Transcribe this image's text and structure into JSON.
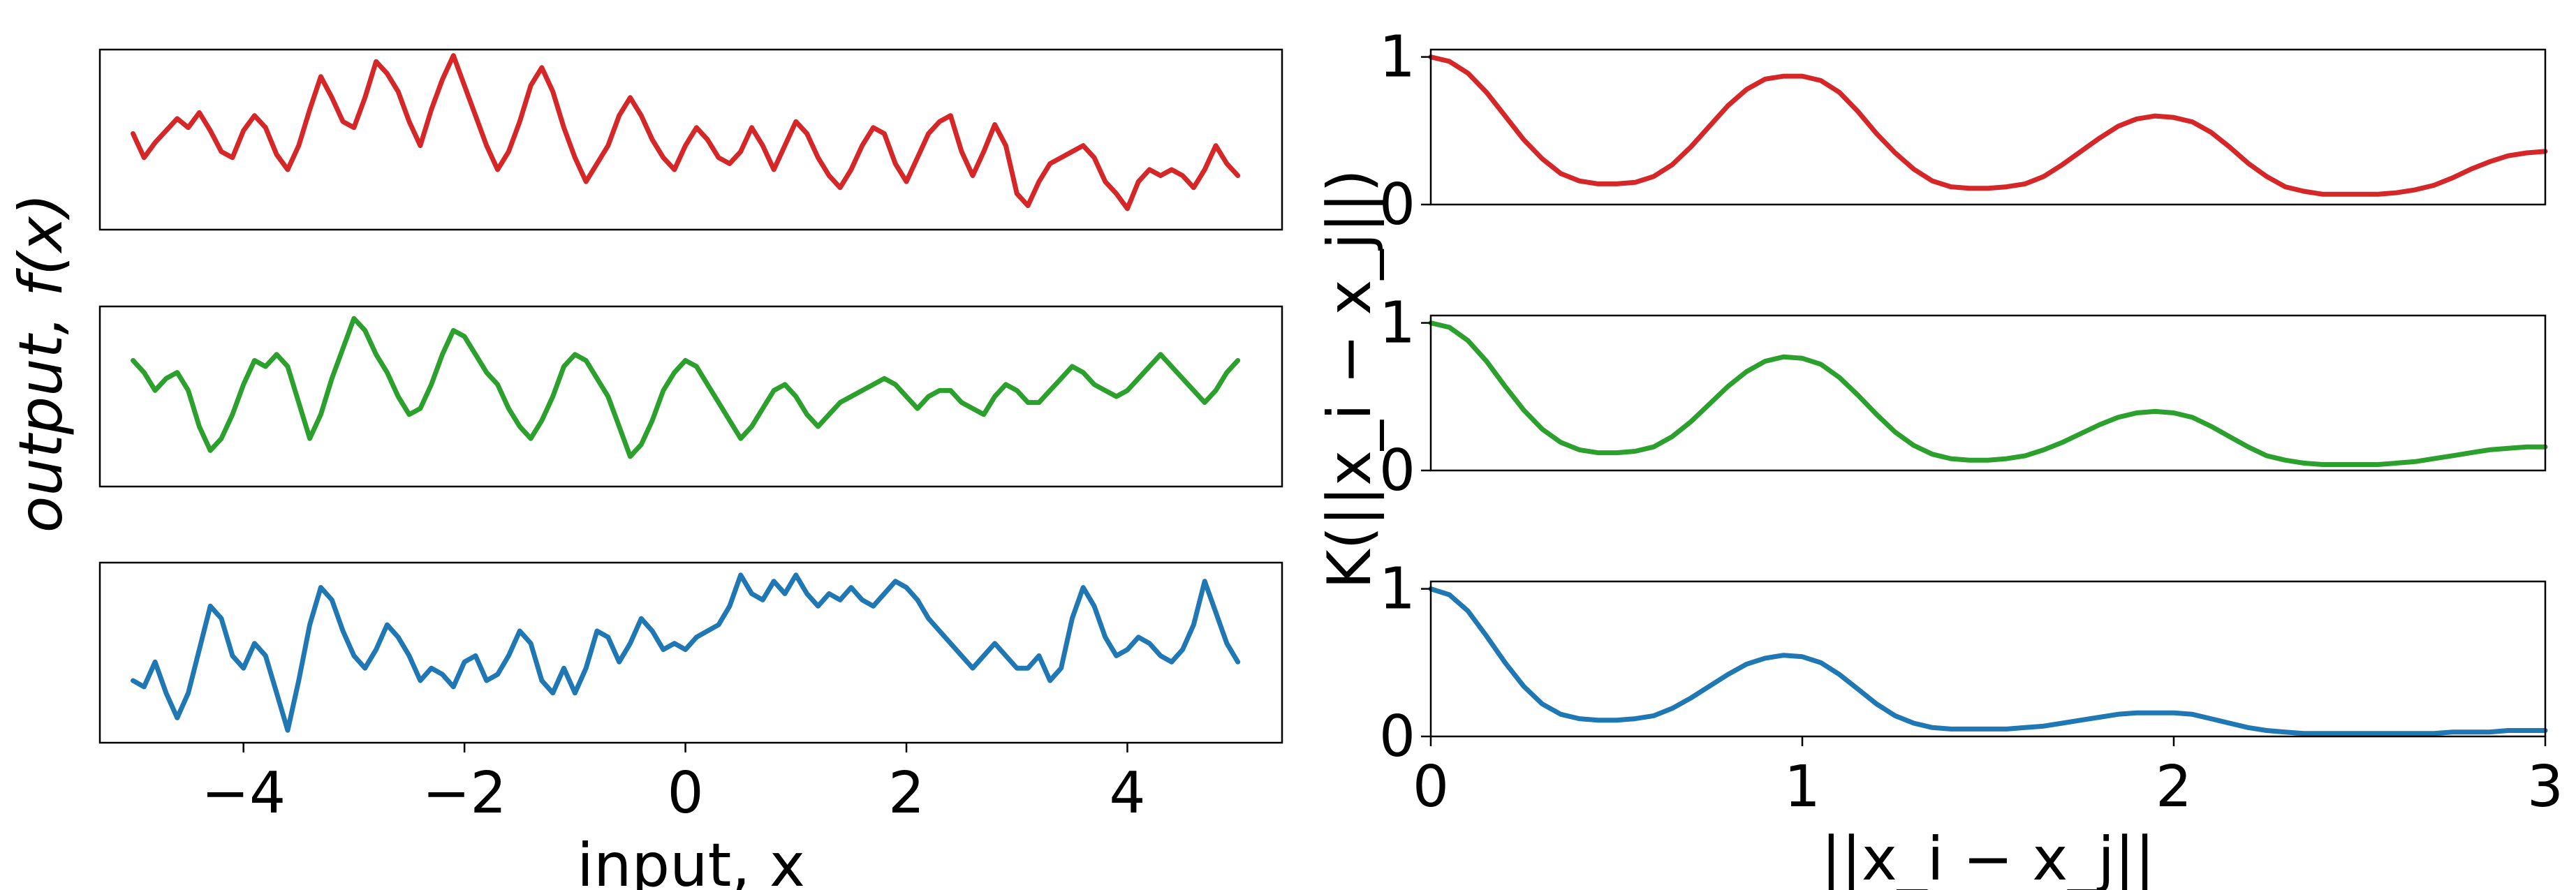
{
  "chart_data": [
    {
      "type": "line",
      "panel": "left-top",
      "color": "#d62728",
      "xlim": [
        -5.3,
        5.4
      ],
      "ylim": [
        -1.6,
        1.4
      ],
      "x_ticks_visible": false,
      "y_ticks_visible": false,
      "series": [
        {
          "x": [
            -5.0,
            -4.9,
            -4.8,
            -4.7,
            -4.6,
            -4.5,
            -4.4,
            -4.3,
            -4.2,
            -4.1,
            -4.0,
            -3.9,
            -3.8,
            -3.7,
            -3.6,
            -3.5,
            -3.4,
            -3.3,
            -3.2,
            -3.1,
            -3.0,
            -2.9,
            -2.8,
            -2.7,
            -2.6,
            -2.5,
            -2.4,
            -2.3,
            -2.2,
            -2.1,
            -2.0,
            -1.9,
            -1.8,
            -1.7,
            -1.6,
            -1.5,
            -1.4,
            -1.3,
            -1.2,
            -1.1,
            -1.0,
            -0.9,
            -0.8,
            -0.7,
            -0.6,
            -0.5,
            -0.4,
            -0.3,
            -0.2,
            -0.1,
            0.0,
            0.1,
            0.2,
            0.3,
            0.4,
            0.5,
            0.6,
            0.7,
            0.8,
            0.9,
            1.0,
            1.1,
            1.2,
            1.3,
            1.4,
            1.5,
            1.6,
            1.7,
            1.8,
            1.9,
            2.0,
            2.1,
            2.2,
            2.3,
            2.4,
            2.5,
            2.6,
            2.7,
            2.8,
            2.9,
            3.0,
            3.1,
            3.2,
            3.3,
            3.4,
            3.5,
            3.6,
            3.7,
            3.8,
            3.9,
            4.0,
            4.1,
            4.2,
            4.3,
            4.4,
            4.5,
            4.6,
            4.7,
            4.8,
            4.9,
            5.0
          ],
          "y": [
            0.0,
            -0.4,
            -0.15,
            0.05,
            0.25,
            0.1,
            0.35,
            0.05,
            -0.3,
            -0.4,
            0.05,
            0.3,
            0.1,
            -0.35,
            -0.6,
            -0.2,
            0.4,
            0.95,
            0.6,
            0.2,
            0.1,
            0.6,
            1.2,
            1.0,
            0.7,
            0.2,
            -0.2,
            0.4,
            0.9,
            1.3,
            0.8,
            0.3,
            -0.2,
            -0.6,
            -0.3,
            0.2,
            0.8,
            1.1,
            0.7,
            0.1,
            -0.4,
            -0.8,
            -0.5,
            -0.2,
            0.3,
            0.6,
            0.3,
            -0.1,
            -0.4,
            -0.6,
            -0.2,
            0.1,
            -0.1,
            -0.4,
            -0.5,
            -0.3,
            0.1,
            -0.2,
            -0.6,
            -0.2,
            0.2,
            0.0,
            -0.4,
            -0.7,
            -0.9,
            -0.6,
            -0.2,
            0.1,
            0.0,
            -0.5,
            -0.8,
            -0.4,
            0.0,
            0.2,
            0.3,
            -0.3,
            -0.7,
            -0.3,
            0.15,
            -0.2,
            -1.0,
            -1.2,
            -0.8,
            -0.5,
            -0.4,
            -0.3,
            -0.2,
            -0.4,
            -0.8,
            -1.0,
            -1.25,
            -0.8,
            -0.6,
            -0.7,
            -0.6,
            -0.7,
            -0.9,
            -0.6,
            -0.2,
            -0.5,
            -0.7
          ]
        }
      ]
    },
    {
      "type": "line",
      "panel": "left-middle",
      "color": "#2ca02c",
      "xlim": [
        -5.3,
        5.4
      ],
      "ylim": [
        -1.6,
        1.4
      ],
      "x_ticks_visible": false,
      "y_ticks_visible": false,
      "series": [
        {
          "x": [
            -5.0,
            -4.9,
            -4.8,
            -4.7,
            -4.6,
            -4.5,
            -4.4,
            -4.3,
            -4.2,
            -4.1,
            -4.0,
            -3.9,
            -3.8,
            -3.7,
            -3.6,
            -3.5,
            -3.4,
            -3.3,
            -3.2,
            -3.1,
            -3.0,
            -2.9,
            -2.8,
            -2.7,
            -2.6,
            -2.5,
            -2.4,
            -2.3,
            -2.2,
            -2.1,
            -2.0,
            -1.9,
            -1.8,
            -1.7,
            -1.6,
            -1.5,
            -1.4,
            -1.3,
            -1.2,
            -1.1,
            -1.0,
            -0.9,
            -0.8,
            -0.7,
            -0.6,
            -0.5,
            -0.4,
            -0.3,
            -0.2,
            -0.1,
            0.0,
            0.1,
            0.2,
            0.3,
            0.4,
            0.5,
            0.6,
            0.7,
            0.8,
            0.9,
            1.0,
            1.1,
            1.2,
            1.3,
            1.4,
            1.5,
            1.6,
            1.7,
            1.8,
            1.9,
            2.0,
            2.1,
            2.2,
            2.3,
            2.4,
            2.5,
            2.6,
            2.7,
            2.8,
            2.9,
            3.0,
            3.1,
            3.2,
            3.3,
            3.4,
            3.5,
            3.6,
            3.7,
            3.8,
            3.9,
            4.0,
            4.1,
            4.2,
            4.3,
            4.4,
            4.5,
            4.6,
            4.7,
            4.8,
            4.9,
            5.0
          ],
          "y": [
            0.5,
            0.3,
            0.0,
            0.2,
            0.3,
            0.0,
            -0.6,
            -1.0,
            -0.8,
            -0.4,
            0.1,
            0.5,
            0.4,
            0.6,
            0.4,
            -0.2,
            -0.8,
            -0.4,
            0.2,
            0.7,
            1.2,
            1.0,
            0.6,
            0.3,
            -0.1,
            -0.4,
            -0.3,
            0.1,
            0.6,
            1.0,
            0.9,
            0.6,
            0.3,
            0.1,
            -0.3,
            -0.6,
            -0.8,
            -0.5,
            -0.1,
            0.4,
            0.6,
            0.5,
            0.2,
            -0.1,
            -0.6,
            -1.1,
            -0.9,
            -0.5,
            0.0,
            0.3,
            0.5,
            0.4,
            0.1,
            -0.2,
            -0.5,
            -0.8,
            -0.6,
            -0.3,
            0.0,
            0.1,
            -0.1,
            -0.4,
            -0.6,
            -0.4,
            -0.2,
            -0.1,
            0.0,
            0.1,
            0.2,
            0.1,
            -0.1,
            -0.3,
            -0.1,
            0.0,
            0.0,
            -0.2,
            -0.3,
            -0.4,
            -0.1,
            0.1,
            0.0,
            -0.2,
            -0.2,
            0.0,
            0.2,
            0.4,
            0.3,
            0.1,
            0.0,
            -0.1,
            0.0,
            0.2,
            0.4,
            0.6,
            0.4,
            0.2,
            0.0,
            -0.2,
            0.0,
            0.3,
            0.5
          ]
        }
      ]
    },
    {
      "type": "line",
      "panel": "left-bottom",
      "color": "#1f77b4",
      "xlim": [
        -5.3,
        5.4
      ],
      "ylim": [
        -1.4,
        1.5
      ],
      "xlabel": "input, x",
      "x_ticks": [
        -4,
        -2,
        0,
        2,
        4
      ],
      "x_tick_labels": [
        "−4",
        "−2",
        "0",
        "2",
        "4"
      ],
      "y_ticks_visible": false,
      "series": [
        {
          "x": [
            -5.0,
            -4.9,
            -4.8,
            -4.7,
            -4.6,
            -4.5,
            -4.4,
            -4.3,
            -4.2,
            -4.1,
            -4.0,
            -3.9,
            -3.8,
            -3.7,
            -3.6,
            -3.5,
            -3.4,
            -3.3,
            -3.2,
            -3.1,
            -3.0,
            -2.9,
            -2.8,
            -2.7,
            -2.6,
            -2.5,
            -2.4,
            -2.3,
            -2.2,
            -2.1,
            -2.0,
            -1.9,
            -1.8,
            -1.7,
            -1.6,
            -1.5,
            -1.4,
            -1.3,
            -1.2,
            -1.1,
            -1.0,
            -0.9,
            -0.8,
            -0.7,
            -0.6,
            -0.5,
            -0.4,
            -0.3,
            -0.2,
            -0.1,
            0.0,
            0.1,
            0.2,
            0.3,
            0.4,
            0.5,
            0.6,
            0.7,
            0.8,
            0.9,
            1.0,
            1.1,
            1.2,
            1.3,
            1.4,
            1.5,
            1.6,
            1.7,
            1.8,
            1.9,
            2.0,
            2.1,
            2.2,
            2.3,
            2.4,
            2.5,
            2.6,
            2.7,
            2.8,
            2.9,
            3.0,
            3.1,
            3.2,
            3.3,
            3.4,
            3.5,
            3.6,
            3.7,
            3.8,
            3.9,
            4.0,
            4.1,
            4.2,
            4.3,
            4.4,
            4.5,
            4.6,
            4.7,
            4.8,
            4.9,
            5.0
          ],
          "y": [
            -0.4,
            -0.5,
            -0.1,
            -0.6,
            -1.0,
            -0.6,
            0.1,
            0.8,
            0.6,
            0.0,
            -0.2,
            0.2,
            0.0,
            -0.6,
            -1.2,
            -0.4,
            0.5,
            1.1,
            0.9,
            0.4,
            0.0,
            -0.2,
            0.1,
            0.5,
            0.3,
            0.0,
            -0.4,
            -0.2,
            -0.3,
            -0.5,
            -0.1,
            0.0,
            -0.4,
            -0.3,
            0.0,
            0.4,
            0.2,
            -0.4,
            -0.6,
            -0.2,
            -0.6,
            -0.2,
            0.4,
            0.3,
            -0.1,
            0.2,
            0.6,
            0.4,
            0.1,
            0.2,
            0.1,
            0.3,
            0.4,
            0.5,
            0.8,
            1.3,
            1.0,
            0.9,
            1.2,
            1.0,
            1.3,
            1.0,
            0.8,
            1.0,
            0.9,
            1.1,
            0.9,
            0.8,
            1.0,
            1.2,
            1.1,
            0.9,
            0.6,
            0.4,
            0.2,
            0.0,
            -0.2,
            0.0,
            0.2,
            0.0,
            -0.2,
            -0.2,
            0.0,
            -0.4,
            -0.2,
            0.6,
            1.1,
            0.8,
            0.3,
            0.0,
            0.1,
            0.3,
            0.2,
            0.0,
            -0.1,
            0.1,
            0.5,
            1.2,
            0.7,
            0.2,
            -0.1
          ]
        }
      ]
    },
    {
      "type": "line",
      "panel": "right-top",
      "color": "#d62728",
      "xlim": [
        0,
        3
      ],
      "ylim": [
        0,
        1.05
      ],
      "y_ticks": [
        0,
        1
      ],
      "y_tick_labels": [
        "0",
        "1"
      ],
      "x_ticks_visible": false,
      "series": [
        {
          "x": [
            0.0,
            0.05,
            0.1,
            0.15,
            0.2,
            0.25,
            0.3,
            0.35,
            0.4,
            0.45,
            0.5,
            0.55,
            0.6,
            0.65,
            0.7,
            0.75,
            0.8,
            0.85,
            0.9,
            0.95,
            1.0,
            1.05,
            1.1,
            1.15,
            1.2,
            1.25,
            1.3,
            1.35,
            1.4,
            1.45,
            1.5,
            1.55,
            1.6,
            1.65,
            1.7,
            1.75,
            1.8,
            1.85,
            1.9,
            1.95,
            2.0,
            2.05,
            2.1,
            2.15,
            2.2,
            2.25,
            2.3,
            2.35,
            2.4,
            2.45,
            2.5,
            2.55,
            2.6,
            2.65,
            2.7,
            2.75,
            2.8,
            2.85,
            2.9,
            2.95,
            3.0
          ],
          "y": [
            1.0,
            0.97,
            0.89,
            0.76,
            0.6,
            0.44,
            0.31,
            0.21,
            0.16,
            0.14,
            0.14,
            0.15,
            0.19,
            0.27,
            0.39,
            0.53,
            0.67,
            0.78,
            0.85,
            0.87,
            0.87,
            0.84,
            0.76,
            0.63,
            0.48,
            0.35,
            0.24,
            0.16,
            0.12,
            0.11,
            0.11,
            0.12,
            0.14,
            0.19,
            0.27,
            0.36,
            0.45,
            0.53,
            0.58,
            0.6,
            0.59,
            0.56,
            0.49,
            0.39,
            0.28,
            0.19,
            0.12,
            0.09,
            0.07,
            0.07,
            0.07,
            0.07,
            0.08,
            0.1,
            0.13,
            0.18,
            0.24,
            0.29,
            0.33,
            0.35,
            0.36
          ]
        }
      ]
    },
    {
      "type": "line",
      "panel": "right-middle",
      "color": "#2ca02c",
      "xlim": [
        0,
        3
      ],
      "ylim": [
        0,
        1.05
      ],
      "y_ticks": [
        0,
        1
      ],
      "y_tick_labels": [
        "0",
        "1"
      ],
      "ylabel": "K(||x_i − x_j||)",
      "x_ticks_visible": false,
      "series": [
        {
          "x": [
            0.0,
            0.05,
            0.1,
            0.15,
            0.2,
            0.25,
            0.3,
            0.35,
            0.4,
            0.45,
            0.5,
            0.55,
            0.6,
            0.65,
            0.7,
            0.75,
            0.8,
            0.85,
            0.9,
            0.95,
            1.0,
            1.05,
            1.1,
            1.15,
            1.2,
            1.25,
            1.3,
            1.35,
            1.4,
            1.45,
            1.5,
            1.55,
            1.6,
            1.65,
            1.7,
            1.75,
            1.8,
            1.85,
            1.9,
            1.95,
            2.0,
            2.05,
            2.1,
            2.15,
            2.2,
            2.25,
            2.3,
            2.35,
            2.4,
            2.45,
            2.5,
            2.55,
            2.6,
            2.65,
            2.7,
            2.75,
            2.8,
            2.85,
            2.9,
            2.95,
            3.0
          ],
          "y": [
            1.0,
            0.97,
            0.88,
            0.74,
            0.57,
            0.41,
            0.28,
            0.19,
            0.14,
            0.12,
            0.12,
            0.13,
            0.16,
            0.23,
            0.33,
            0.45,
            0.57,
            0.67,
            0.74,
            0.77,
            0.76,
            0.72,
            0.63,
            0.51,
            0.38,
            0.26,
            0.17,
            0.11,
            0.08,
            0.07,
            0.07,
            0.08,
            0.1,
            0.14,
            0.19,
            0.25,
            0.31,
            0.36,
            0.39,
            0.4,
            0.39,
            0.36,
            0.3,
            0.23,
            0.16,
            0.1,
            0.07,
            0.05,
            0.04,
            0.04,
            0.04,
            0.04,
            0.05,
            0.06,
            0.08,
            0.1,
            0.12,
            0.14,
            0.15,
            0.16,
            0.16
          ]
        }
      ]
    },
    {
      "type": "line",
      "panel": "right-bottom",
      "color": "#1f77b4",
      "xlim": [
        0,
        3
      ],
      "ylim": [
        0,
        1.05
      ],
      "y_ticks": [
        0,
        1
      ],
      "y_tick_labels": [
        "0",
        "1"
      ],
      "x_ticks": [
        0,
        1,
        2,
        3
      ],
      "x_tick_labels": [
        "0",
        "1",
        "2",
        "3"
      ],
      "xlabel": "||x_i − x_j||",
      "series": [
        {
          "x": [
            0.0,
            0.05,
            0.1,
            0.15,
            0.2,
            0.25,
            0.3,
            0.35,
            0.4,
            0.45,
            0.5,
            0.55,
            0.6,
            0.65,
            0.7,
            0.75,
            0.8,
            0.85,
            0.9,
            0.95,
            1.0,
            1.05,
            1.1,
            1.15,
            1.2,
            1.25,
            1.3,
            1.35,
            1.4,
            1.45,
            1.5,
            1.55,
            1.6,
            1.65,
            1.7,
            1.75,
            1.8,
            1.85,
            1.9,
            1.95,
            2.0,
            2.05,
            2.1,
            2.15,
            2.2,
            2.25,
            2.3,
            2.35,
            2.4,
            2.45,
            2.5,
            2.55,
            2.6,
            2.65,
            2.7,
            2.75,
            2.8,
            2.85,
            2.9,
            2.95,
            3.0
          ],
          "y": [
            1.0,
            0.96,
            0.85,
            0.68,
            0.5,
            0.34,
            0.22,
            0.15,
            0.12,
            0.11,
            0.11,
            0.12,
            0.14,
            0.19,
            0.26,
            0.34,
            0.42,
            0.49,
            0.53,
            0.55,
            0.54,
            0.5,
            0.42,
            0.32,
            0.22,
            0.14,
            0.09,
            0.06,
            0.05,
            0.05,
            0.05,
            0.05,
            0.06,
            0.07,
            0.09,
            0.11,
            0.13,
            0.15,
            0.16,
            0.16,
            0.16,
            0.15,
            0.12,
            0.09,
            0.06,
            0.04,
            0.03,
            0.02,
            0.02,
            0.02,
            0.02,
            0.02,
            0.02,
            0.02,
            0.02,
            0.03,
            0.03,
            0.03,
            0.04,
            0.04,
            0.04
          ]
        }
      ]
    }
  ],
  "labels": {
    "left_ylabel": "output, f(x)"
  }
}
